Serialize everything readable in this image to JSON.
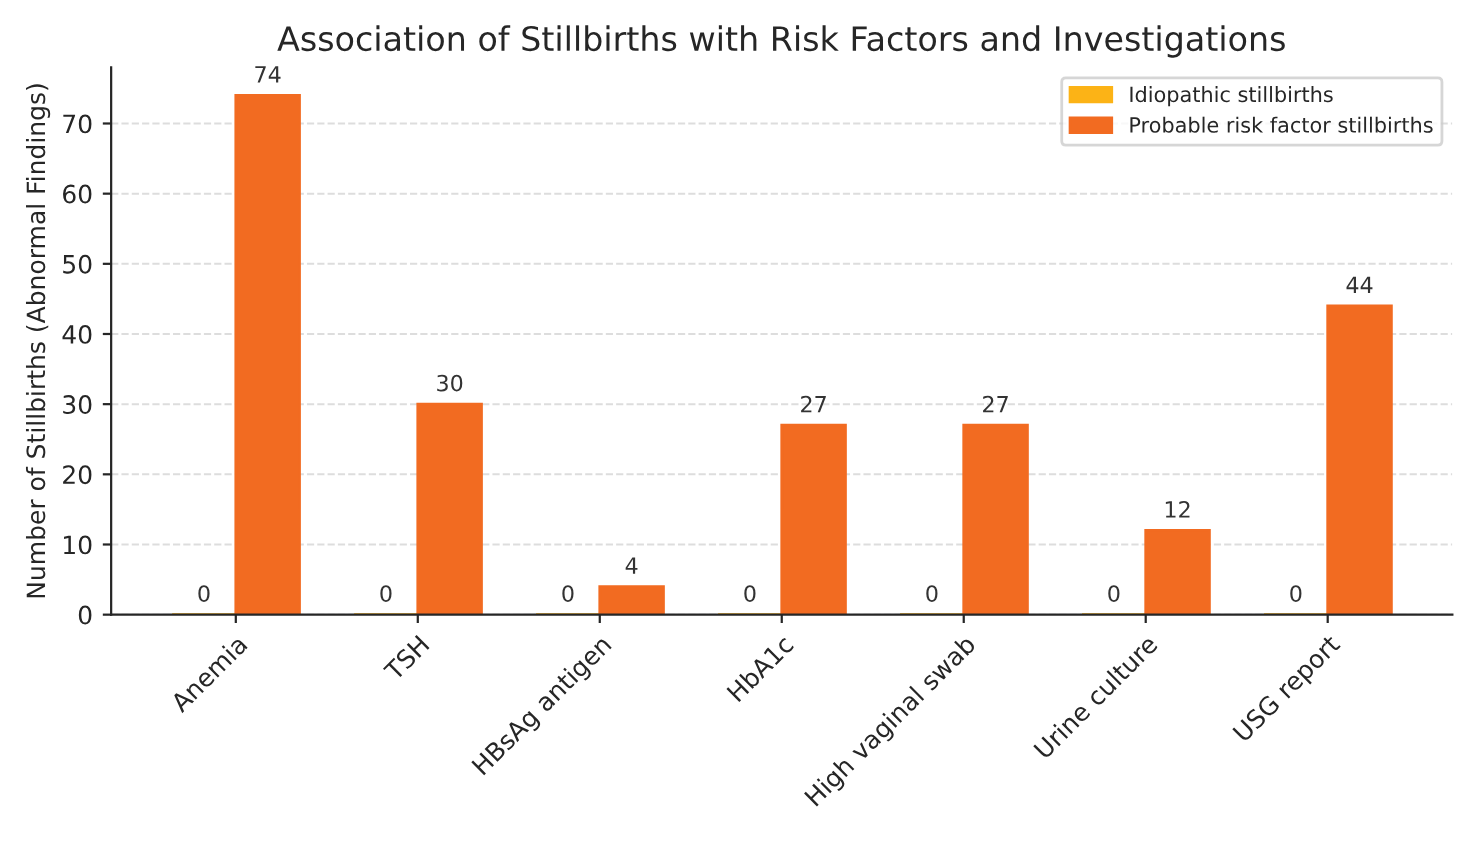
{
  "chart_data": {
    "type": "bar",
    "title": "Association of Stillbirths with Risk Factors and Investigations",
    "ylabel": "Number of Stillbirths (Abnormal Findings)",
    "categories": [
      "Anemia",
      "TSH",
      "HBsAg antigen",
      "HbA1c",
      "High vaginal swab",
      "Urine culture",
      "USG report"
    ],
    "series": [
      {
        "name": "Idiopathic stillbirths",
        "color": "#fcb316",
        "values": [
          0,
          0,
          0,
          0,
          0,
          0,
          0
        ]
      },
      {
        "name": "Probable risk factor stillbirths",
        "color": "#f26b21",
        "values": [
          74,
          30,
          4,
          27,
          27,
          12,
          44
        ]
      }
    ],
    "ylim": [
      0,
      78
    ],
    "yticks": [
      0,
      10,
      20,
      30,
      40,
      50,
      60,
      70
    ],
    "grid": "y",
    "legend": "top right",
    "data_labels": true
  }
}
